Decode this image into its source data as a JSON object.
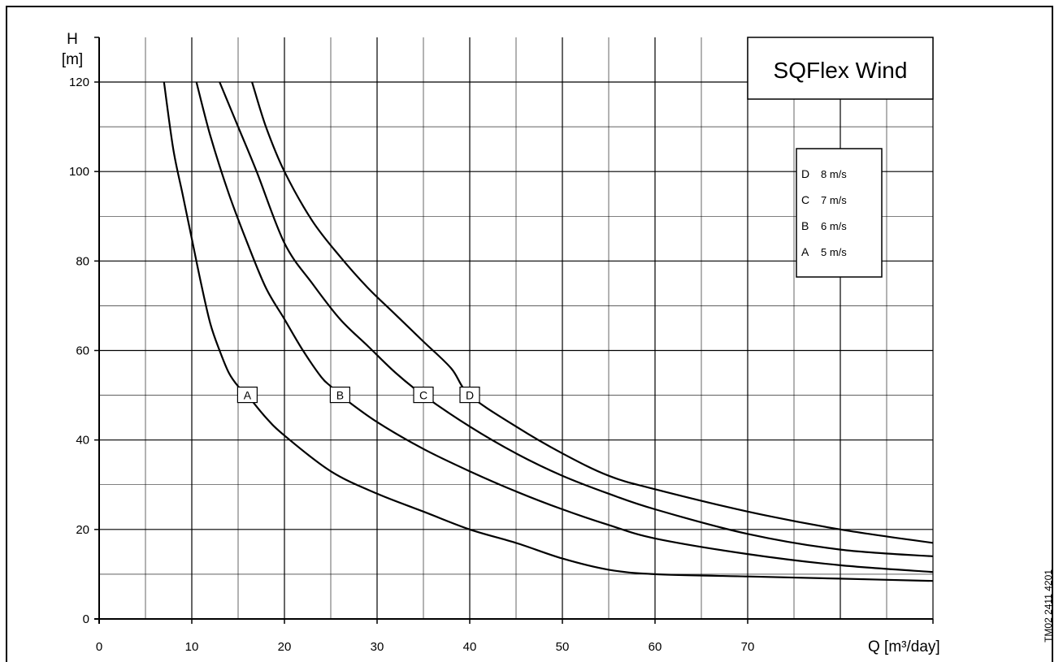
{
  "chart_data": {
    "type": "line",
    "title": "SQFlex Wind",
    "xlabel": "Q [m³/day]",
    "ylabel_line1": "H",
    "ylabel_line2": "[m]",
    "xlim": [
      0,
      90
    ],
    "ylim": [
      0,
      120
    ],
    "x_ticks": [
      0,
      10,
      20,
      30,
      40,
      50,
      60,
      70
    ],
    "y_ticks": [
      0,
      20,
      40,
      60,
      80,
      100,
      120
    ],
    "x_minor_step": 5,
    "y_minor_step": 10,
    "grid": true,
    "legend_position": "top-right",
    "legend": [
      {
        "key": "D",
        "label": "8 m/s"
      },
      {
        "key": "C",
        "label": "7 m/s"
      },
      {
        "key": "B",
        "label": "6 m/s"
      },
      {
        "key": "A",
        "label": "5 m/s"
      }
    ],
    "series": [
      {
        "name": "A",
        "label_at": [
          16,
          50
        ],
        "points": [
          [
            7,
            120
          ],
          [
            8,
            105
          ],
          [
            9,
            95
          ],
          [
            10,
            85
          ],
          [
            11,
            75
          ],
          [
            12,
            66
          ],
          [
            13,
            60
          ],
          [
            14,
            55
          ],
          [
            15,
            52
          ],
          [
            16,
            50
          ],
          [
            18,
            45
          ],
          [
            20,
            41
          ],
          [
            25,
            33
          ],
          [
            30,
            28
          ],
          [
            35,
            24
          ],
          [
            40,
            20
          ],
          [
            45,
            17
          ],
          [
            50,
            13.5
          ],
          [
            55,
            11
          ],
          [
            60,
            10
          ],
          [
            70,
            9.5
          ],
          [
            80,
            9
          ],
          [
            90,
            8.5
          ]
        ]
      },
      {
        "name": "B",
        "label_at": [
          26,
          50
        ],
        "points": [
          [
            10.5,
            120
          ],
          [
            12,
            108
          ],
          [
            14,
            95
          ],
          [
            16,
            84
          ],
          [
            18,
            74
          ],
          [
            20,
            67
          ],
          [
            22,
            60
          ],
          [
            24,
            54
          ],
          [
            25,
            52
          ],
          [
            26,
            50
          ],
          [
            30,
            44
          ],
          [
            35,
            38
          ],
          [
            40,
            33
          ],
          [
            45,
            28.5
          ],
          [
            50,
            24.5
          ],
          [
            55,
            21
          ],
          [
            60,
            18
          ],
          [
            70,
            14.5
          ],
          [
            80,
            12
          ],
          [
            90,
            10.5
          ]
        ]
      },
      {
        "name": "C",
        "label_at": [
          35,
          50
        ],
        "points": [
          [
            13,
            120
          ],
          [
            15,
            110
          ],
          [
            17,
            100
          ],
          [
            20,
            84
          ],
          [
            23,
            75
          ],
          [
            26,
            67
          ],
          [
            29,
            61
          ],
          [
            32,
            55
          ],
          [
            35,
            50
          ],
          [
            40,
            43
          ],
          [
            45,
            37
          ],
          [
            50,
            32
          ],
          [
            55,
            28
          ],
          [
            60,
            24.5
          ],
          [
            70,
            19
          ],
          [
            80,
            15.5
          ],
          [
            90,
            14
          ]
        ]
      },
      {
        "name": "D",
        "label_at": [
          40,
          50
        ],
        "points": [
          [
            16.5,
            120
          ],
          [
            18,
            110
          ],
          [
            20,
            100
          ],
          [
            23,
            89
          ],
          [
            26,
            81
          ],
          [
            29,
            74
          ],
          [
            32,
            68
          ],
          [
            35,
            62
          ],
          [
            38,
            56
          ],
          [
            40,
            50
          ],
          [
            45,
            43
          ],
          [
            50,
            37
          ],
          [
            55,
            32
          ],
          [
            60,
            29
          ],
          [
            70,
            24
          ],
          [
            80,
            20
          ],
          [
            90,
            17
          ]
        ]
      }
    ]
  },
  "doc_ref": "TM02 2411 4201"
}
